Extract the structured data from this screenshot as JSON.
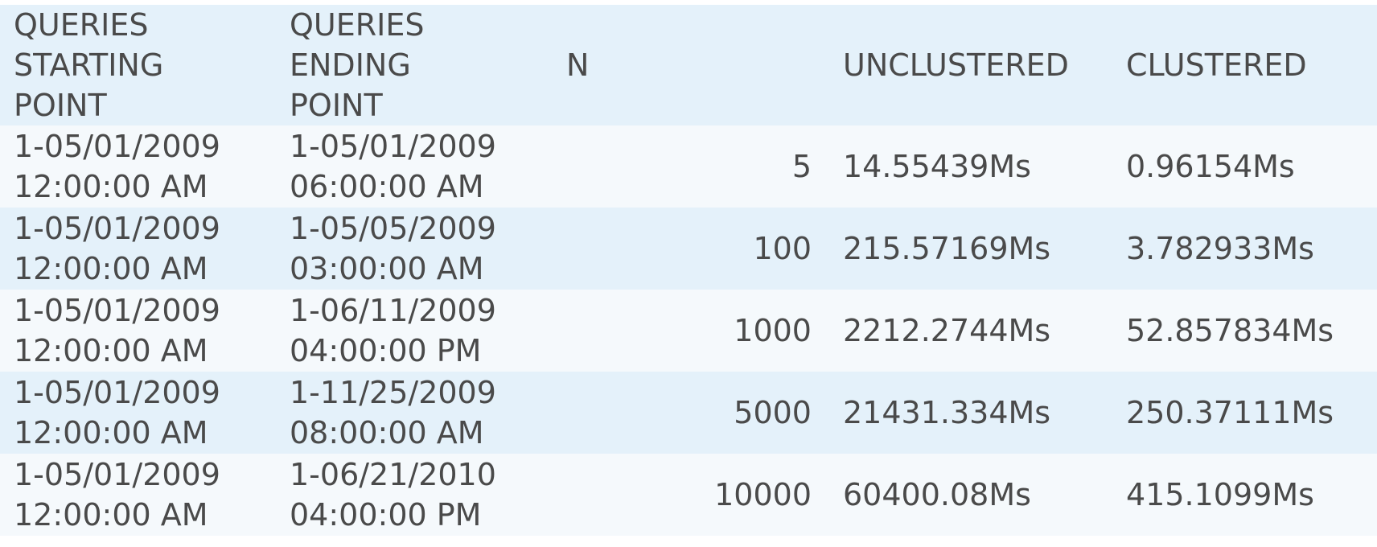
{
  "table": {
    "headers": {
      "start": "QUERIES\nSTARTING\nPOINT",
      "end": "QUERIES\nENDING\nPOINT",
      "n": "N",
      "unclustered": "UNCLUSTERED",
      "clustered": "CLUSTERED"
    },
    "rows": [
      {
        "start": "1-05/01/2009\n12:00:00 AM",
        "end": "1-05/01/2009\n06:00:00 AM",
        "n": "5",
        "unclustered": "14.55439Ms",
        "clustered": "0.96154Ms"
      },
      {
        "start": "1-05/01/2009\n12:00:00 AM",
        "end": "1-05/05/2009\n03:00:00 AM",
        "n": "100",
        "unclustered": "215.57169Ms",
        "clustered": "3.782933Ms"
      },
      {
        "start": "1-05/01/2009\n12:00:00 AM",
        "end": "1-06/11/2009\n04:00:00 PM",
        "n": "1000",
        "unclustered": "2212.2744Ms",
        "clustered": "52.857834Ms"
      },
      {
        "start": "1-05/01/2009\n12:00:00 AM",
        "end": "1-11/25/2009\n08:00:00 AM",
        "n": "5000",
        "unclustered": "21431.334Ms",
        "clustered": "250.37111Ms"
      },
      {
        "start": "1-05/01/2009\n12:00:00 AM",
        "end": "1-06/21/2010\n04:00:00 PM",
        "n": "10000",
        "unclustered": "60400.08Ms",
        "clustered": "415.1099Ms"
      }
    ]
  },
  "colors": {
    "header_bg": "#e4f1fa",
    "row_light": "#f5f9fc",
    "row_dark": "#e4f1fa",
    "text": "#4a4a4a"
  }
}
